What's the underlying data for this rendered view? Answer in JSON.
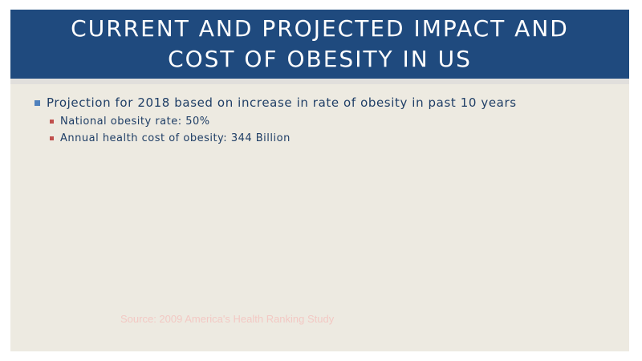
{
  "slide": {
    "title": "CURRENT AND PROJECTED IMPACT AND COST OF OBESITY IN US",
    "bullets": [
      {
        "text": "Projection for 2018 based on increase in rate of obesity in past 10 years",
        "sub": [
          "National obesity rate: 50%",
          "Annual health cost of obesity: 344 Billion"
        ]
      }
    ],
    "source": "Source: 2009 America's Health Ranking Study"
  },
  "colors": {
    "title_bar": "#1f4a7e",
    "content_bg": "#edeae1",
    "text": "#1f3e66",
    "bullet_l1": "#4f81bd",
    "bullet_l2": "#c0504d",
    "source_text": "#f2c9c4"
  }
}
